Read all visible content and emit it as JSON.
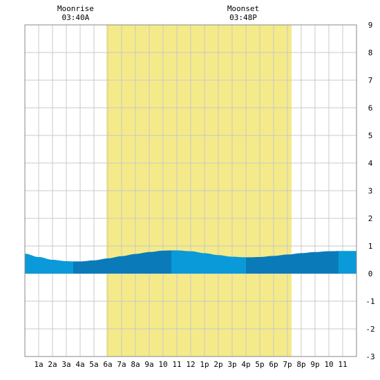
{
  "chart_data": {
    "type": "area",
    "title": "",
    "xlabel": "",
    "ylabel": "",
    "x_range_hours": [
      0,
      24
    ],
    "ylim": [
      -3,
      9
    ],
    "y_ticks": [
      -3,
      -2,
      -1,
      0,
      1,
      2,
      3,
      4,
      5,
      6,
      7,
      8,
      9
    ],
    "x_ticks": [
      {
        "hour": 1,
        "label": "1a"
      },
      {
        "hour": 2,
        "label": "2a"
      },
      {
        "hour": 3,
        "label": "3a"
      },
      {
        "hour": 4,
        "label": "4a"
      },
      {
        "hour": 5,
        "label": "5a"
      },
      {
        "hour": 6,
        "label": "6a"
      },
      {
        "hour": 7,
        "label": "7a"
      },
      {
        "hour": 8,
        "label": "8a"
      },
      {
        "hour": 9,
        "label": "9a"
      },
      {
        "hour": 10,
        "label": "10"
      },
      {
        "hour": 11,
        "label": "11"
      },
      {
        "hour": 12,
        "label": "12"
      },
      {
        "hour": 13,
        "label": "1p"
      },
      {
        "hour": 14,
        "label": "2p"
      },
      {
        "hour": 15,
        "label": "3p"
      },
      {
        "hour": 16,
        "label": "4p"
      },
      {
        "hour": 17,
        "label": "5p"
      },
      {
        "hour": 18,
        "label": "6p"
      },
      {
        "hour": 19,
        "label": "7p"
      },
      {
        "hour": 20,
        "label": "8p"
      },
      {
        "hour": 21,
        "label": "9p"
      },
      {
        "hour": 22,
        "label": "10"
      },
      {
        "hour": 23,
        "label": "11"
      }
    ],
    "moon_window_hours": [
      5.9,
      19.3
    ],
    "moonrise": {
      "hour": 3.67,
      "title": "Moonrise",
      "time": "03:40A"
    },
    "moonset": {
      "hour": 15.8,
      "title": "Moonset",
      "time": "03:48P"
    },
    "tide_series": {
      "x": [
        0,
        1,
        2,
        3,
        3.5,
        4,
        5,
        6,
        7,
        8,
        9,
        10,
        10.6,
        11,
        12,
        13,
        14,
        15,
        16,
        16.3,
        17,
        18,
        19,
        20,
        21,
        22,
        23,
        24
      ],
      "y": [
        0.72,
        0.6,
        0.5,
        0.45,
        0.44,
        0.44,
        0.48,
        0.55,
        0.63,
        0.71,
        0.78,
        0.83,
        0.84,
        0.84,
        0.81,
        0.74,
        0.67,
        0.61,
        0.59,
        0.59,
        0.6,
        0.64,
        0.69,
        0.74,
        0.78,
        0.81,
        0.82,
        0.82
      ]
    },
    "tide_segments_hours": [
      {
        "from": 0,
        "to": 3.5,
        "shade": "light"
      },
      {
        "from": 3.5,
        "to": 10.6,
        "shade": "dark"
      },
      {
        "from": 10.6,
        "to": 16.0,
        "shade": "light"
      },
      {
        "from": 16.0,
        "to": 22.7,
        "shade": "dark"
      },
      {
        "from": 22.7,
        "to": 24,
        "shade": "light"
      }
    ],
    "colors": {
      "moon_window": "#f5ea8a",
      "tide_light": "#0a9ad9",
      "tide_dark": "#0a7bb8",
      "grid": "#c8c8c8",
      "border": "#888888"
    },
    "grid": true
  }
}
